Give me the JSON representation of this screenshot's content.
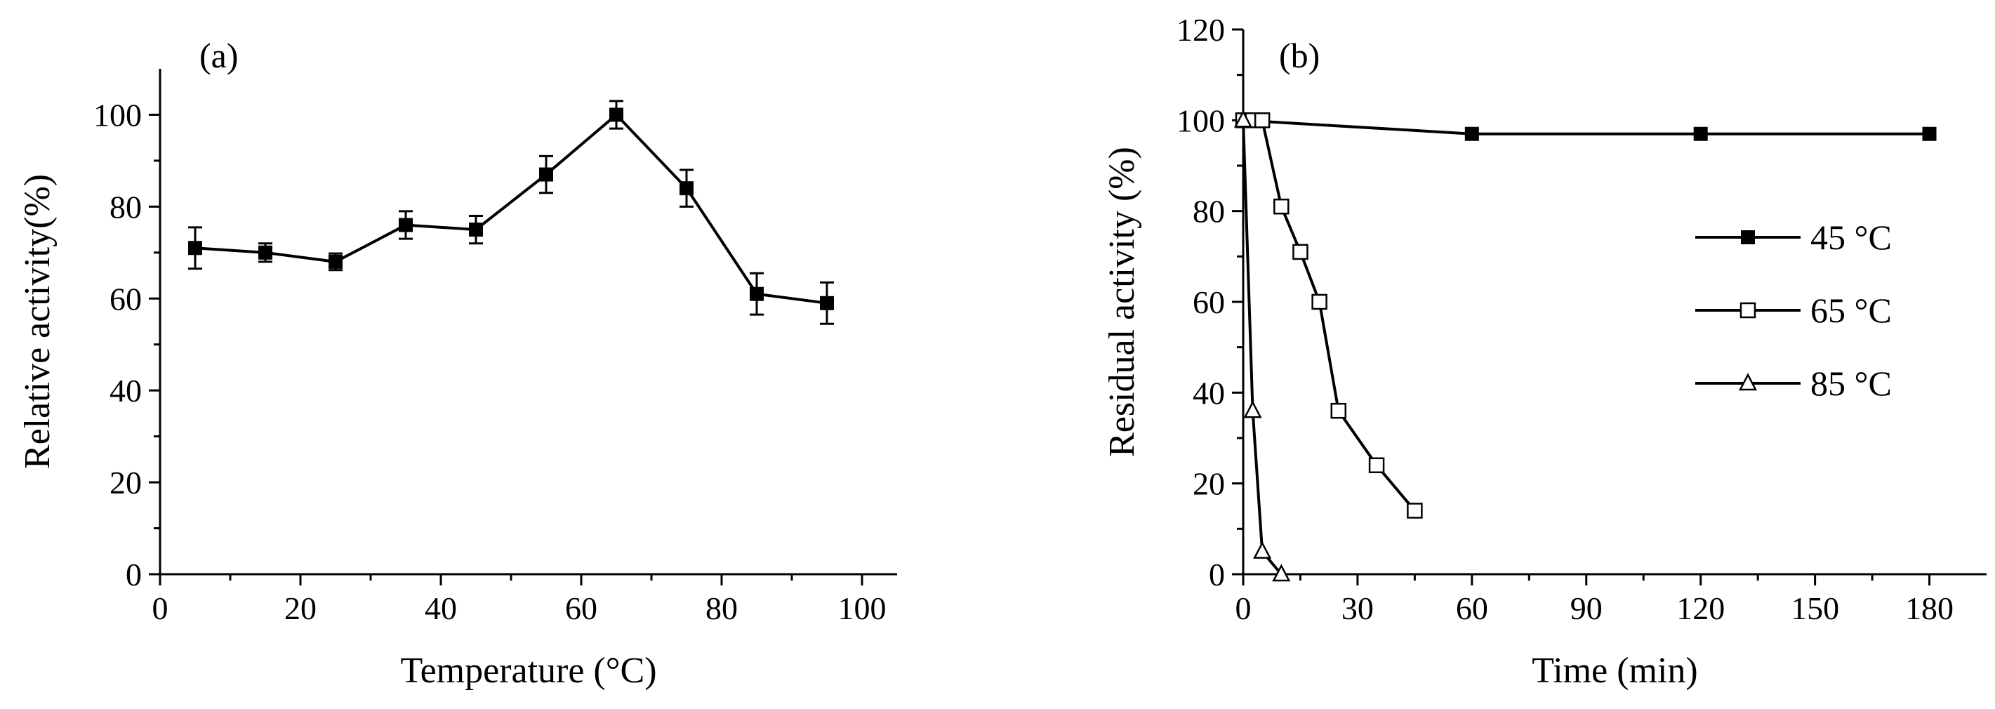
{
  "chart_data": [
    {
      "type": "line",
      "panel_label": "(a)",
      "xlabel": "Temperature (°C)",
      "ylabel": "Relative activity(%)",
      "xlim": [
        0,
        105
      ],
      "ylim": [
        0,
        110
      ],
      "xticks": [
        0,
        20,
        40,
        60,
        80,
        100
      ],
      "yticks": [
        0,
        20,
        40,
        60,
        80,
        100
      ],
      "series": [
        {
          "name": "Relative activity",
          "marker": "filled-square",
          "x": [
            5,
            15,
            25,
            35,
            45,
            55,
            65,
            75,
            85,
            95
          ],
          "values": [
            71,
            70,
            68,
            76,
            75,
            87,
            100,
            84,
            61,
            59
          ],
          "errors": [
            4.5,
            2,
            1.8,
            3,
            3,
            4,
            3,
            4,
            4.5,
            4.5
          ]
        }
      ]
    },
    {
      "type": "line",
      "panel_label": "(b)",
      "xlabel": "Time (min)",
      "ylabel": "Residual activity (%)",
      "xlim": [
        0,
        195
      ],
      "ylim": [
        0,
        120
      ],
      "xticks": [
        0,
        30,
        60,
        90,
        120,
        150,
        180
      ],
      "yticks": [
        0,
        20,
        40,
        60,
        80,
        100,
        120
      ],
      "legend_position": "right",
      "series": [
        {
          "name": "45 °C",
          "marker": "filled-square",
          "x": [
            0,
            60,
            120,
            180
          ],
          "values": [
            100,
            97,
            97,
            97
          ]
        },
        {
          "name": "65 °C",
          "marker": "open-square",
          "x": [
            0,
            2.5,
            5,
            10,
            15,
            20,
            25,
            35,
            45
          ],
          "values": [
            100,
            100,
            100,
            81,
            71,
            60,
            36,
            24,
            14
          ]
        },
        {
          "name": "85 °C",
          "marker": "open-triangle",
          "x": [
            0,
            2.5,
            5,
            10
          ],
          "values": [
            100,
            36,
            5,
            0
          ]
        }
      ]
    }
  ]
}
